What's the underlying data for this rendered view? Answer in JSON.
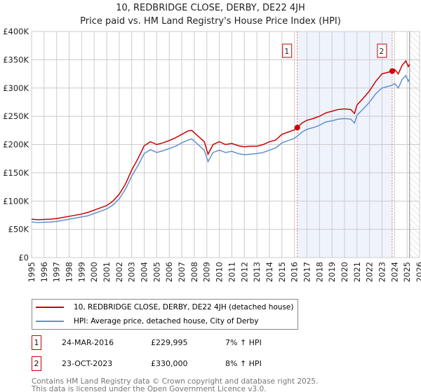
{
  "chart_data": {
    "type": "line",
    "title": "10, REDBRIDGE CLOSE, DERBY, DE22 4JH",
    "subtitle": "Price paid vs. HM Land Registry's House Price Index (HPI)",
    "xlim": [
      1995,
      2026
    ],
    "ylim": [
      0,
      400000
    ],
    "x_ticks": [
      "1995",
      "1996",
      "1997",
      "1998",
      "1999",
      "2000",
      "2001",
      "2002",
      "2003",
      "2004",
      "2005",
      "2006",
      "2007",
      "2008",
      "2009",
      "2010",
      "2011",
      "2012",
      "2013",
      "2014",
      "2015",
      "2016",
      "2017",
      "2018",
      "2019",
      "2020",
      "2021",
      "2022",
      "2023",
      "2024",
      "2025",
      "2026"
    ],
    "y_ticks": [
      {
        "v": 0,
        "label": "£0"
      },
      {
        "v": 50000,
        "label": "£50K"
      },
      {
        "v": 100000,
        "label": "£100K"
      },
      {
        "v": 150000,
        "label": "£150K"
      },
      {
        "v": 200000,
        "label": "£200K"
      },
      {
        "v": 250000,
        "label": "£250K"
      },
      {
        "v": 300000,
        "label": "£300K"
      },
      {
        "v": 350000,
        "label": "£350K"
      },
      {
        "v": 400000,
        "label": "£400K"
      }
    ],
    "grid": true,
    "shaded_range": [
      2016.23,
      2023.81
    ],
    "future_hatch_from": 2025.2,
    "series": [
      {
        "name": "10, REDBRIDGE CLOSE, DERBY, DE22 4JH (detached house)",
        "color": "#cc0000",
        "x": [
          1995,
          1995.5,
          1996,
          1996.5,
          1997,
          1997.5,
          1998,
          1998.5,
          1999,
          1999.5,
          2000,
          2000.5,
          2001,
          2001.5,
          2002,
          2002.5,
          2003,
          2003.5,
          2004,
          2004.5,
          2005,
          2005.5,
          2006,
          2006.5,
          2007,
          2007.5,
          2007.8,
          2008.3,
          2008.8,
          2009.1,
          2009.5,
          2010,
          2010.5,
          2011,
          2011.5,
          2012,
          2012.5,
          2013,
          2013.5,
          2014,
          2014.5,
          2015,
          2015.5,
          2016,
          2016.23,
          2016.6,
          2017,
          2017.5,
          2018,
          2018.5,
          2019,
          2019.5,
          2020,
          2020.5,
          2020.8,
          2021,
          2021.5,
          2022,
          2022.5,
          2023,
          2023.5,
          2023.81,
          2024,
          2024.3,
          2024.6,
          2024.9,
          2025.1,
          2025.2
        ],
        "y": [
          68000,
          67000,
          67500,
          68000,
          69000,
          71000,
          73000,
          75000,
          77000,
          80000,
          84000,
          88000,
          92000,
          100000,
          112000,
          130000,
          155000,
          175000,
          198000,
          205000,
          200000,
          203000,
          207000,
          212000,
          218000,
          224000,
          225000,
          215000,
          205000,
          183000,
          200000,
          205000,
          200000,
          202000,
          198000,
          196000,
          197000,
          197000,
          200000,
          205000,
          208000,
          218000,
          222000,
          226000,
          229995,
          238000,
          243000,
          246000,
          250000,
          256000,
          259000,
          262000,
          263000,
          262000,
          255000,
          270000,
          282000,
          295000,
          312000,
          325000,
          328000,
          330000,
          333000,
          325000,
          340000,
          348000,
          338000,
          342000
        ]
      },
      {
        "name": "HPI: Average price, detached house, City of Derby",
        "color": "#6090d0",
        "x": [
          1995,
          1995.5,
          1996,
          1996.5,
          1997,
          1997.5,
          1998,
          1998.5,
          1999,
          1999.5,
          2000,
          2000.5,
          2001,
          2001.5,
          2002,
          2002.5,
          2003,
          2003.5,
          2004,
          2004.5,
          2005,
          2005.5,
          2006,
          2006.5,
          2007,
          2007.5,
          2007.8,
          2008.3,
          2008.8,
          2009.1,
          2009.5,
          2010,
          2010.5,
          2011,
          2011.5,
          2012,
          2012.5,
          2013,
          2013.5,
          2014,
          2014.5,
          2015,
          2015.5,
          2016,
          2016.23,
          2016.6,
          2017,
          2017.5,
          2018,
          2018.5,
          2019,
          2019.5,
          2020,
          2020.5,
          2020.8,
          2021,
          2021.5,
          2022,
          2022.5,
          2023,
          2023.5,
          2023.81,
          2024,
          2024.3,
          2024.6,
          2024.9,
          2025.1,
          2025.2
        ],
        "y": [
          63000,
          62000,
          62500,
          63000,
          64000,
          66000,
          68000,
          70000,
          72000,
          74000,
          78000,
          82000,
          86000,
          93000,
          104000,
          121000,
          144000,
          163000,
          184000,
          191000,
          186000,
          189000,
          193000,
          197000,
          203000,
          208000,
          210000,
          200000,
          190000,
          170000,
          186000,
          190000,
          186000,
          188000,
          184000,
          182000,
          183000,
          184000,
          186000,
          190000,
          194000,
          203000,
          207000,
          211000,
          215000,
          222000,
          227000,
          230000,
          234000,
          240000,
          242000,
          245000,
          246000,
          245000,
          238000,
          252000,
          263000,
          275000,
          290000,
          300000,
          303000,
          305000,
          308000,
          300000,
          315000,
          322000,
          312000,
          316000
        ]
      }
    ],
    "sales": [
      {
        "label": "1",
        "x": 2016.23,
        "y": 229995
      },
      {
        "label": "2",
        "x": 2023.81,
        "y": 330000
      }
    ]
  },
  "legend": {
    "red": "10, REDBRIDGE CLOSE, DERBY, DE22 4JH (detached house)",
    "blue": "HPI: Average price, detached house, City of Derby"
  },
  "annotations": [
    {
      "num": "1",
      "date": "24-MAR-2016",
      "price": "£229,995",
      "hpi": "7% ↑ HPI"
    },
    {
      "num": "2",
      "date": "23-OCT-2023",
      "price": "£330,000",
      "hpi": "8% ↑ HPI"
    }
  ],
  "footer": {
    "line1": "Contains HM Land Registry data © Crown copyright and database right 2025.",
    "line2": "This data is licensed under the Open Government Licence v3.0."
  }
}
